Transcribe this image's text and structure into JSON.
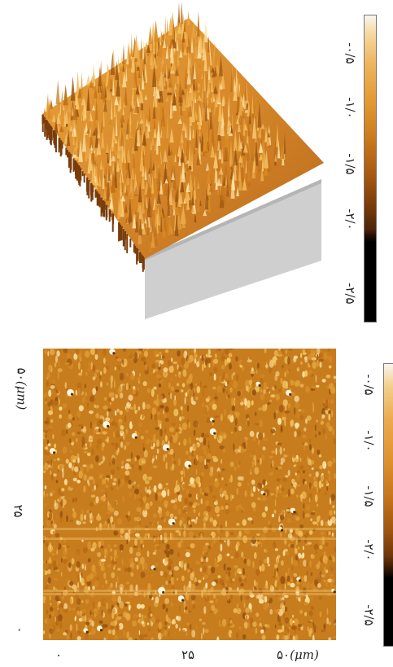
{
  "colorscale": {
    "ticks": [
      "-۰/۵",
      "-۱/۰",
      "-۱/۵",
      "-۲/۰",
      "-۲/۵"
    ]
  },
  "axis": {
    "ticks": [
      "۰",
      "۲۵",
      "۵۰"
    ],
    "unit": "(μm)"
  },
  "colors": {
    "surface_light": "#f6c36a",
    "surface_mid": "#d98a22",
    "surface_dark": "#8a4a0e",
    "base_gray": "#cfcfcf"
  }
}
